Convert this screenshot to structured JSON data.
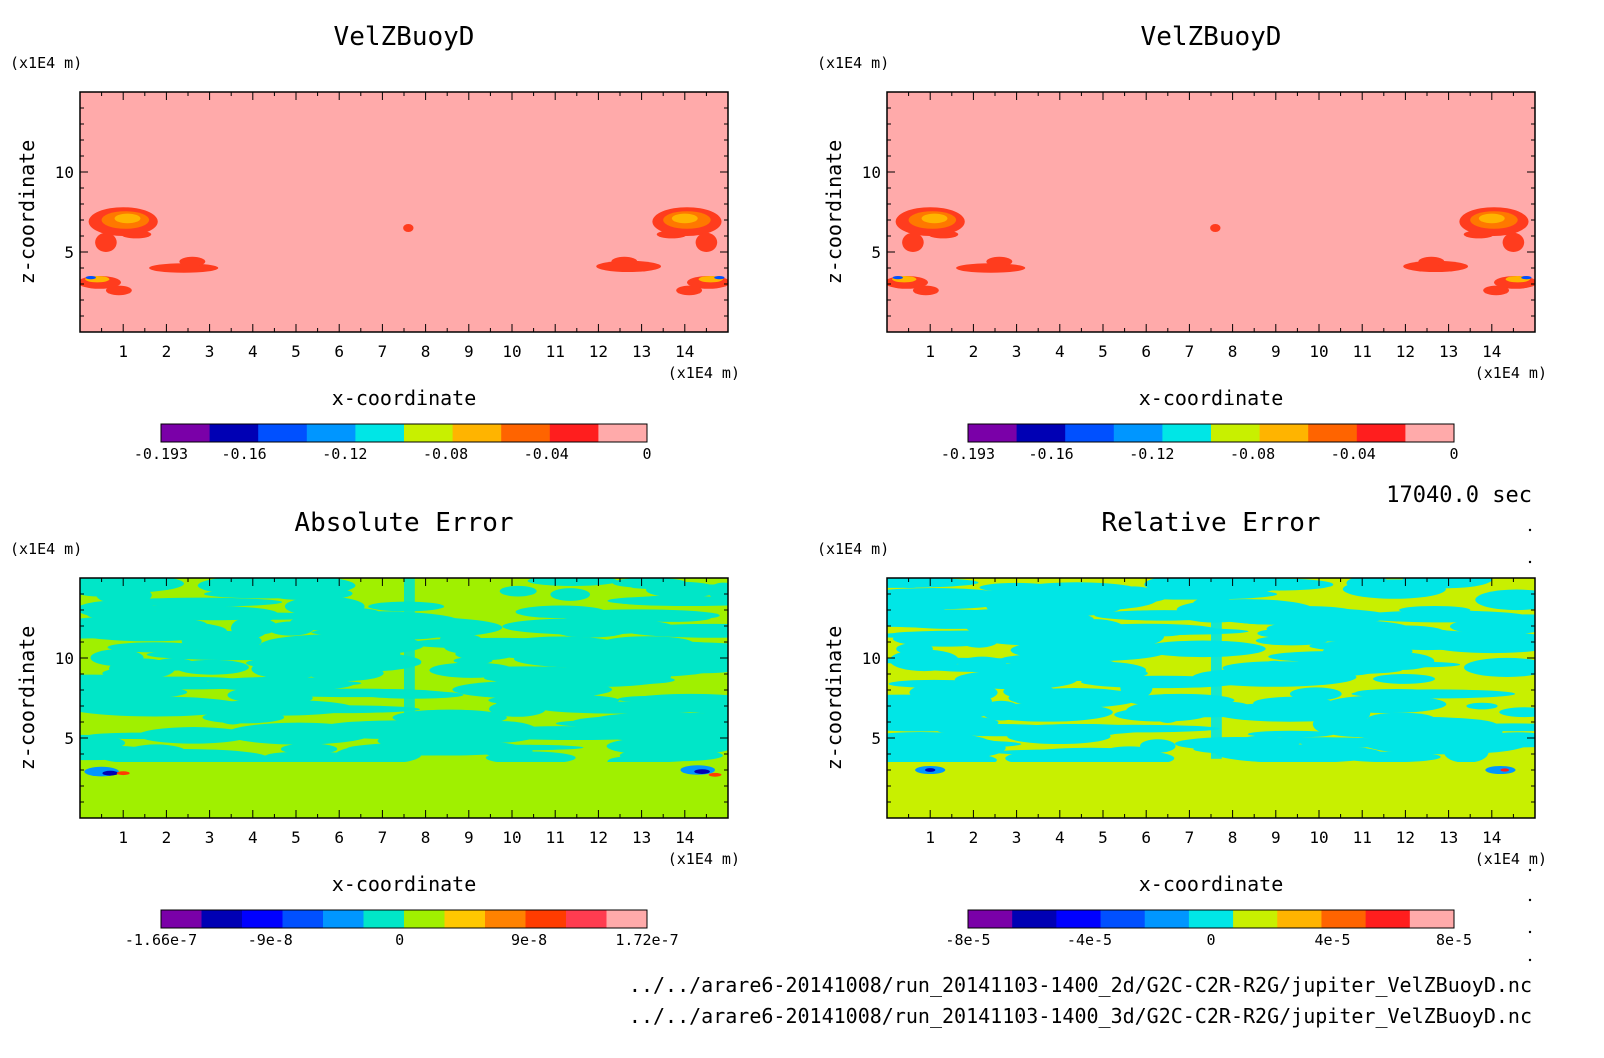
{
  "time_label": "17040.0 sec",
  "footer": {
    "line1": "../../arare6-20141008/run_20141103-1400_2d/G2C-C2R-R2G/jupiter_VelZBuoyD.nc",
    "line2": "../../arare6-20141008/run_20141103-1400_3d/G2C-C2R-R2G/jupiter_VelZBuoyD.nc"
  },
  "chart_data": [
    {
      "type": "heatmap",
      "title": "VelZBuoyD",
      "xlabel": "x-coordinate",
      "ylabel": "z-coordinate",
      "x_unit": "(x1E4 m)",
      "y_unit": "(x1E4 m)",
      "xlim": [
        0,
        15
      ],
      "ylim": [
        0,
        15
      ],
      "x_ticks": [
        "1",
        "2",
        "3",
        "4",
        "5",
        "6",
        "7",
        "8",
        "9",
        "10",
        "11",
        "12",
        "13",
        "14"
      ],
      "y_ticks": [
        "5",
        "10"
      ],
      "background_level": 0,
      "colorbar": {
        "levels": [
          -0.193,
          -0.16,
          -0.12,
          -0.08,
          -0.04,
          0
        ],
        "tick_labels": [
          "-0.193",
          "-0.16",
          "-0.12",
          "-0.08",
          "-0.04",
          "0"
        ],
        "colors": [
          "#7a00a8",
          "#0000b4",
          "#0050ff",
          "#0096ff",
          "#00e6e6",
          "#c8f000",
          "#ffb400",
          "#ff6400",
          "#ff1e1e",
          "#ffaaaa"
        ]
      },
      "features": "negative updraft-buoyancy plumes near x=0.5-1.5, x=2.5, x=7.5, x=12.5, x=14-15 at z=3-7",
      "background_color": "#ffaaaa"
    },
    {
      "type": "heatmap",
      "title": "VelZBuoyD",
      "xlabel": "x-coordinate",
      "ylabel": "z-coordinate",
      "x_unit": "(x1E4 m)",
      "y_unit": "(x1E4 m)",
      "xlim": [
        0,
        15
      ],
      "ylim": [
        0,
        15
      ],
      "x_ticks": [
        "1",
        "2",
        "3",
        "4",
        "5",
        "6",
        "7",
        "8",
        "9",
        "10",
        "11",
        "12",
        "13",
        "14"
      ],
      "y_ticks": [
        "5",
        "10"
      ],
      "background_level": 0,
      "colorbar": {
        "levels": [
          -0.193,
          -0.16,
          -0.12,
          -0.08,
          -0.04,
          0
        ],
        "tick_labels": [
          "-0.193",
          "-0.16",
          "-0.12",
          "-0.08",
          "-0.04",
          "0"
        ],
        "colors": [
          "#7a00a8",
          "#0000b4",
          "#0050ff",
          "#0096ff",
          "#00e6e6",
          "#c8f000",
          "#ffb400",
          "#ff6400",
          "#ff1e1e",
          "#ffaaaa"
        ]
      },
      "background_color": "#ffaaaa"
    },
    {
      "type": "heatmap",
      "title": "Absolute Error",
      "xlabel": "x-coordinate",
      "ylabel": "z-coordinate",
      "x_unit": "(x1E4 m)",
      "y_unit": "(x1E4 m)",
      "xlim": [
        0,
        15
      ],
      "ylim": [
        0,
        15
      ],
      "x_ticks": [
        "1",
        "2",
        "3",
        "4",
        "5",
        "6",
        "7",
        "8",
        "9",
        "10",
        "11",
        "12",
        "13",
        "14"
      ],
      "y_ticks": [
        "5",
        "10"
      ],
      "colorbar": {
        "tick_labels": [
          "-1.66e-7",
          "-9e-8",
          "0",
          "9e-8",
          "1.72e-7"
        ],
        "tick_values": [
          -1.66e-07,
          -9e-08,
          0,
          9e-08,
          1.72e-07
        ],
        "colors": [
          "#7a00a8",
          "#0000b4",
          "#0000ff",
          "#0050ff",
          "#0096ff",
          "#00e6c8",
          "#a0f000",
          "#ffc800",
          "#ff8200",
          "#ff3c00",
          "#ff3c50",
          "#ffaaaa"
        ]
      },
      "dominant_colors": [
        "#a0f000",
        "#00e6c8"
      ]
    },
    {
      "type": "heatmap",
      "title": "Relative Error",
      "xlabel": "x-coordinate",
      "ylabel": "z-coordinate",
      "x_unit": "(x1E4 m)",
      "y_unit": "(x1E4 m)",
      "xlim": [
        0,
        15
      ],
      "ylim": [
        0,
        15
      ],
      "x_ticks": [
        "1",
        "2",
        "3",
        "4",
        "5",
        "6",
        "7",
        "8",
        "9",
        "10",
        "11",
        "12",
        "13",
        "14"
      ],
      "y_ticks": [
        "5",
        "10"
      ],
      "colorbar": {
        "tick_labels": [
          "-8e-5",
          "-4e-5",
          "0",
          "4e-5",
          "8e-5"
        ],
        "tick_values": [
          -8e-05,
          -4e-05,
          0,
          4e-05,
          8e-05
        ],
        "colors": [
          "#7a00a8",
          "#0000b4",
          "#0000ff",
          "#0050ff",
          "#0096ff",
          "#00e6e6",
          "#c8f000",
          "#ffb400",
          "#ff6400",
          "#ff1e1e",
          "#ffaaaa"
        ]
      },
      "dominant_colors": [
        "#c8f000",
        "#00e6e6"
      ]
    }
  ]
}
